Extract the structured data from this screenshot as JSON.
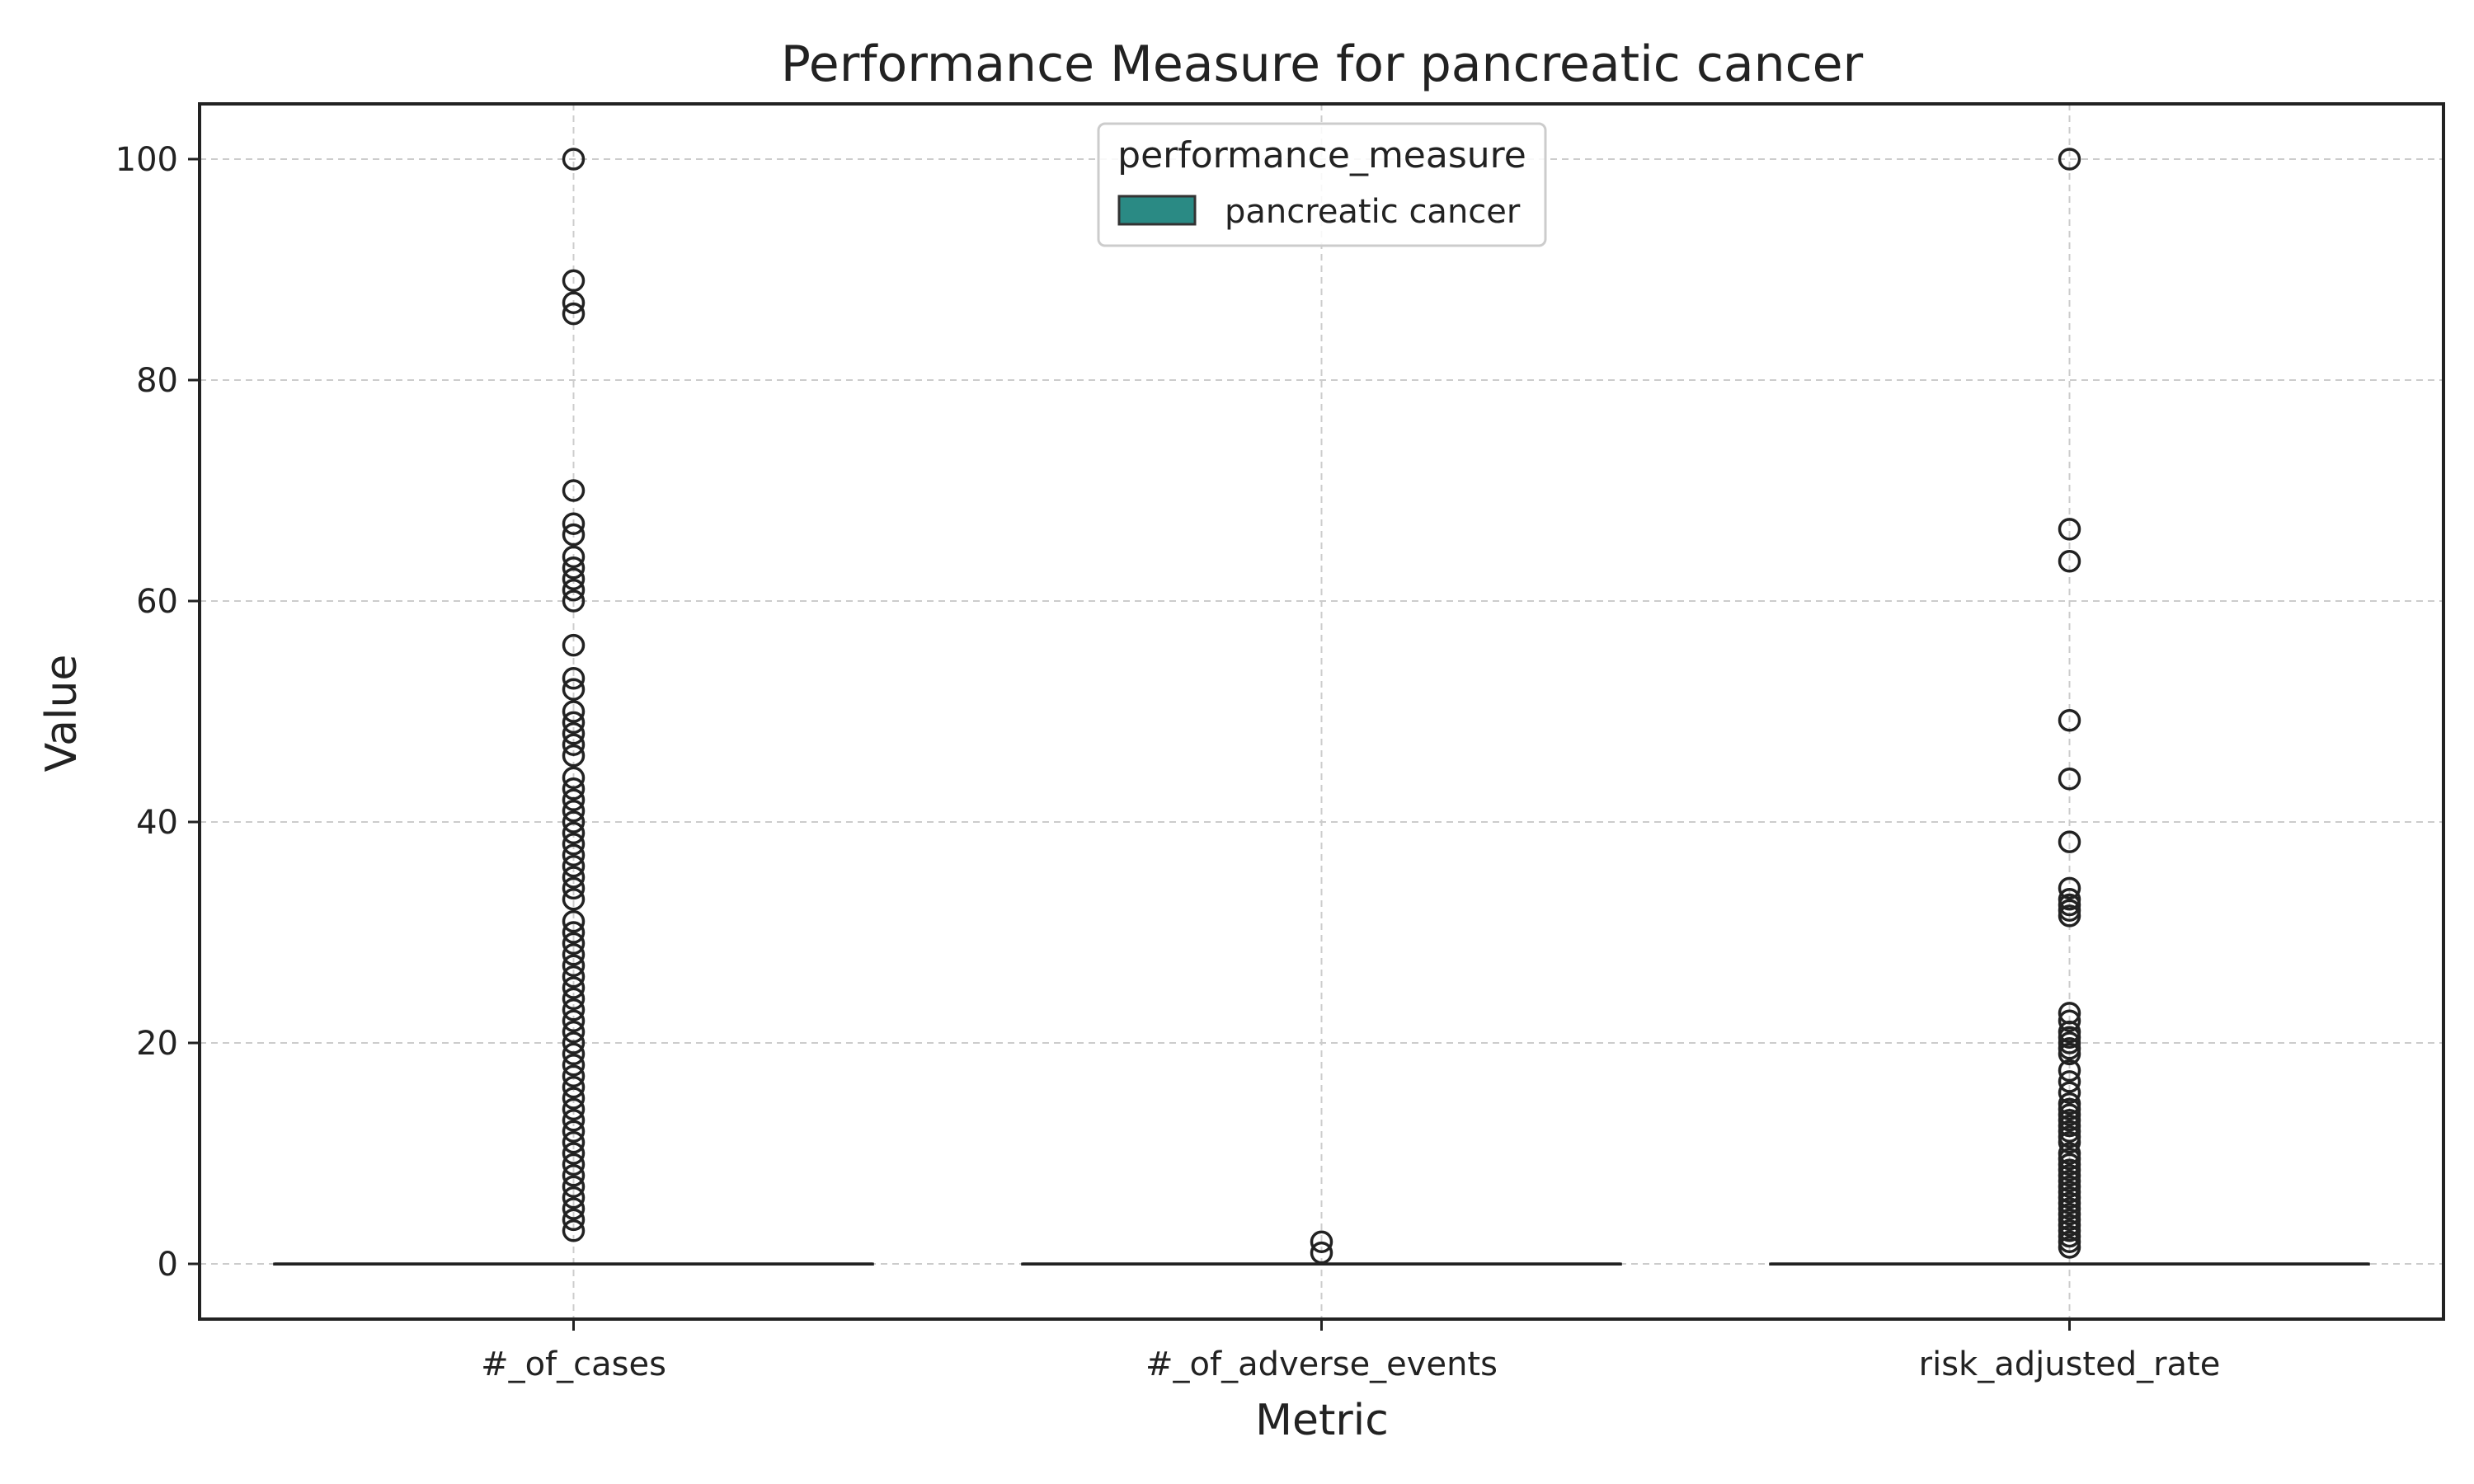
{
  "chart_data": {
    "type": "box",
    "title": "Performance Measure for pancreatic cancer",
    "xlabel": "Metric",
    "ylabel": "Value",
    "ylim": [
      -5,
      105
    ],
    "yticks": [
      0,
      20,
      40,
      60,
      80,
      100
    ],
    "grid": true,
    "categories": [
      "#_of_cases",
      "#_of_adverse_events",
      "risk_adjusted_rate"
    ],
    "legend": {
      "title": "performance_measure",
      "placement": "top-center",
      "entries": [
        {
          "label": "pancreatic cancer",
          "color": "#2a8a84"
        }
      ]
    },
    "series": [
      {
        "name": "pancreatic cancer",
        "color": "#2a8a84",
        "boxes": [
          {
            "category": "#_of_cases",
            "q1": 0,
            "median": 0,
            "q3": 0,
            "whisker_low": 0,
            "whisker_high": 0,
            "outliers": [
              3,
              4,
              5,
              6,
              7,
              8,
              9,
              10,
              11,
              12,
              13,
              14,
              15,
              16,
              17,
              18,
              19,
              20,
              21,
              22,
              23,
              24,
              25,
              26,
              27,
              28,
              29,
              30,
              31,
              33,
              34,
              35,
              36,
              37,
              38,
              39,
              40,
              41,
              42,
              43,
              44,
              46,
              47,
              48,
              49,
              50,
              52,
              53,
              56,
              60,
              61,
              62,
              63,
              64,
              66,
              67,
              70,
              86,
              87,
              89,
              100
            ]
          },
          {
            "category": "#_of_adverse_events",
            "q1": 0,
            "median": 0,
            "q3": 0,
            "whisker_low": 0,
            "whisker_high": 0,
            "outliers": [
              1,
              2
            ]
          },
          {
            "category": "risk_adjusted_rate",
            "q1": 0,
            "median": 0,
            "q3": 0,
            "whisker_low": 0,
            "whisker_high": 0,
            "outliers": [
              1.5,
              2,
              2.5,
              3,
              3.5,
              4,
              4.5,
              5,
              5.5,
              6,
              6.5,
              7,
              7.5,
              8,
              8.5,
              9,
              9.5,
              10,
              11,
              11.5,
              12,
              12.5,
              13,
              13.5,
              14,
              14.5,
              15.5,
              16.5,
              17.5,
              19,
              19.5,
              20,
              20.5,
              21,
              22,
              22.7,
              31.5,
              32,
              32.5,
              33,
              34,
              38.2,
              43.9,
              49.2,
              63.6,
              66.5,
              100
            ]
          }
        ]
      }
    ]
  }
}
